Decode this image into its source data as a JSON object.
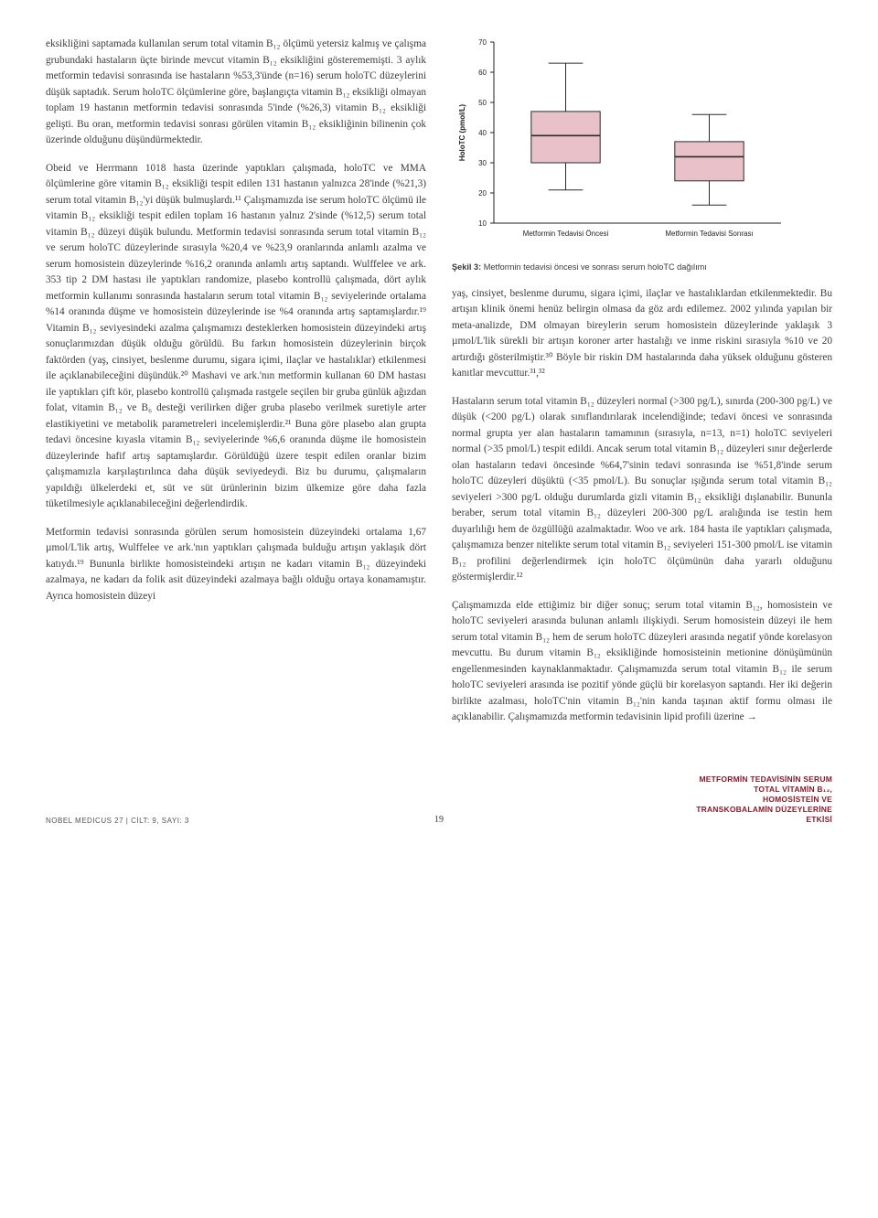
{
  "left_column": {
    "p1": "eksikliğini saptamada kullanılan serum total vitamin B₁₂ ölçümü yetersiz kalmış ve çalışma grubundaki hastaların üçte birinde mevcut vitamin B₁₂ eksikliğini gösterememişti. 3 aylık metformin tedavisi sonrasında ise hastaların %53,3'ünde (n=16) serum holoTC düzeylerini düşük saptadık. Serum holoTC ölçümlerine göre, başlangıçta vitamin B₁₂ eksikliği olmayan toplam 19 hastanın metformin tedavisi sonrasında 5'inde (%26,3) vitamin B₁₂ eksikliği gelişti. Bu oran, metformin tedavisi sonrası görülen vitamin B₁₂ eksikliğinin bilinenin çok üzerinde olduğunu düşündürmektedir.",
    "p2": "Obeid ve Herrmann 1018 hasta üzerinde yaptıkları çalışmada, holoTC ve MMA ölçümlerine göre vitamin B₁₂ eksikliği tespit edilen 131 hastanın yalnızca 28'inde (%21,3) serum total vitamin B₁₂'yi düşük bulmuşlardı.¹¹ Çalışmamızda ise serum holoTC ölçümü ile vitamin B₁₂ eksikliği tespit edilen toplam 16 hastanın yalnız 2'sinde (%12,5) serum total vitamin B₁₂ düzeyi düşük bulundu. Metformin tedavisi sonrasında serum total vitamin B₁₂ ve serum holoTC düzeylerinde sırasıyla %20,4 ve %23,9 oranlarında anlamlı azalma ve serum homosistein düzeylerinde %16,2 oranında anlamlı artış saptandı. Wulffelee ve ark. 353 tip 2 DM hastası ile yaptıkları randomize, plasebo kontrollü çalışmada, dört aylık metformin kullanımı sonrasında hastaların serum total vitamin B₁₂ seviyelerinde ortalama %14 oranında düşme ve homosistein düzeylerinde ise %4 oranında artış saptamışlardır.¹⁹ Vitamin B₁₂ seviyesindeki azalma çalışmamızı desteklerken homosistein düzeyindeki artış sonuçlarımızdan düşük olduğu görüldü. Bu farkın homosistein düzeylerinin birçok faktörden (yaş, cinsiyet, beslenme durumu, sigara içimi, ilaçlar ve hastalıklar) etkilenmesi ile açıklanabileceğini düşündük.²⁰ Mashavi ve ark.'nın metformin kullanan 60 DM hastası ile yaptıkları çift kör, plasebo kontrollü çalışmada rastgele seçilen bir gruba günlük ağızdan folat, vitamin B₁₂ ve B₆ desteği verilirken diğer gruba plasebo verilmek suretiyle arter elastikiyetini ve metabolik parametreleri incelemişlerdir.²¹ Buna göre plasebo alan grupta tedavi öncesine kıyasla vitamin B₁₂ seviyelerinde %6,6 oranında düşme ile homosistein düzeylerinde hafif artış saptamışlardır. Görüldüğü üzere tespit edilen oranlar bizim çalışmamızla karşılaştırılınca daha düşük seviyedeydi. Biz bu durumu, çalışmaların yapıldığı ülkelerdeki et, süt ve süt ürünlerinin bizim ülkemize göre daha fazla tüketilmesiyle açıklanabileceğini değerlendirdik.",
    "p3": "Metformin tedavisi sonrasında görülen serum homosistein düzeyindeki ortalama 1,67 µmol/L'lik artış, Wulffelee ve ark.'nın yaptıkları çalışmada bulduğu artışın yaklaşık dört katıydı.¹⁹ Bununla birlikte homosisteindeki artışın ne kadarı vitamin B₁₂ düzeyindeki azalmaya, ne kadarı da folik asit düzeyindeki azalmaya bağlı olduğu ortaya konamamıştır. Ayrıca homosistein düzeyi"
  },
  "right_column": {
    "p1": "yaş, cinsiyet, beslenme durumu, sigara içimi, ilaçlar ve hastalıklardan etkilenmektedir. Bu artışın klinik önemi henüz belirgin olmasa da göz ardı edilemez. 2002 yılında yapılan bir meta-analizde, DM olmayan bireylerin serum homosistein düzeylerinde yaklaşık 3 µmol/L'lik sürekli bir artışın koroner arter hastalığı ve inme riskini sırasıyla %10 ve 20 artırdığı gösterilmiştir.³⁰ Böyle bir riskin DM hastalarında daha yüksek olduğunu gösteren kanıtlar mevcuttur.³¹,³²",
    "p2": "Hastaların serum total vitamin B₁₂ düzeyleri normal (>300 pg/L), sınırda (200-300 pg/L) ve düşük (<200 pg/L) olarak sınıflandırılarak incelendiğinde; tedavi öncesi ve sonrasında normal grupta yer alan hastaların tamamının (sırasıyla, n=13, n=1) holoTC seviyeleri normal (>35 pmol/L) tespit edildi. Ancak serum total vitamin B₁₂ düzeyleri sınır değerlerde olan hastaların tedavi öncesinde %64,7'sinin tedavi sonrasında ise %51,8'inde serum holoTC düzeyleri düşüktü (<35 pmol/L). Bu sonuçlar ışığında serum total vitamin B₁₂ seviyeleri >300 pg/L olduğu durumlarda gizli vitamin B₁₂ eksikliği dışlanabilir. Bununla beraber, serum total vitamin B₁₂ düzeyleri 200-300 pg/L aralığında ise testin hem duyarlılığı hem de özgüllüğü azalmaktadır. Woo ve ark. 184 hasta ile yaptıkları çalışmada, çalışmamıza benzer nitelikte serum total vitamin B₁₂ seviyeleri 151-300 pmol/L ise vitamin B₁₂ profilini değerlendirmek için holoTC ölçümünün daha yararlı olduğunu göstermişlerdir.¹²",
    "p3": "Çalışmamızda elde ettiğimiz bir diğer sonuç; serum total vitamin B₁₂, homosistein ve holoTC seviyeleri arasında bulunan anlamlı ilişkiydi. Serum homosistein düzeyi ile hem serum total vitamin B₁₂ hem de serum holoTC düzeyleri arasında negatif yönde korelasyon mevcuttu. Bu durum vitamin B₁₂ eksikliğinde homosisteinin metionine dönüşümünün engellenmesinden kaynaklanmaktadır. Çalışmamızda serum total vitamin B₁₂ ile serum holoTC seviyeleri arasında ise pozitif yönde güçlü bir korelasyon saptandı. Her iki değerin birlikte azalması, holoTC'nin vitamin B₁₂'nin kanda taşınan aktif formu olması ile açıklanabilir. Çalışmamızda metformin tedavisinin lipid profili üzerine →"
  },
  "chart": {
    "type": "boxplot",
    "ylabel": "HoloTC (pmol/L)",
    "ylim": [
      10,
      70
    ],
    "yticks": [
      10,
      20,
      30,
      40,
      50,
      60,
      70
    ],
    "background_color": "#ffffff",
    "axis_color": "#222222",
    "label_fontsize": 8,
    "tick_fontsize": 8,
    "categories": [
      "Metformin Tedavisi Öncesi",
      "Metformin Tedavisi Sonrası"
    ],
    "box_fill": "#e8c2c8",
    "box_stroke": "#2b2b2b",
    "median_color": "#2b2b2b",
    "whisker_color": "#2b2b2b",
    "boxes": [
      {
        "q1": 30,
        "median": 39,
        "q3": 47,
        "whisker_low": 21,
        "whisker_high": 63
      },
      {
        "q1": 24,
        "median": 32,
        "q3": 37,
        "whisker_low": 16,
        "whisker_high": 46
      }
    ]
  },
  "chart_caption_label": "Şekil 3:",
  "chart_caption_text": "Metformin tedavisi öncesi ve sonrası serum holoTC dağılımı",
  "footer": {
    "journal": "NOBEL MEDICUS 27  |  CİLT: 9, SAYI: 3",
    "page": "19",
    "sidebar_title": "METFORMİN TEDAVİSİNİN SERUM TOTAL VİTAMİN B₁₂, HOMOSİSTEİN VE TRANSKOBALAMİN DÜZEYLERİNE ETKİSİ"
  }
}
